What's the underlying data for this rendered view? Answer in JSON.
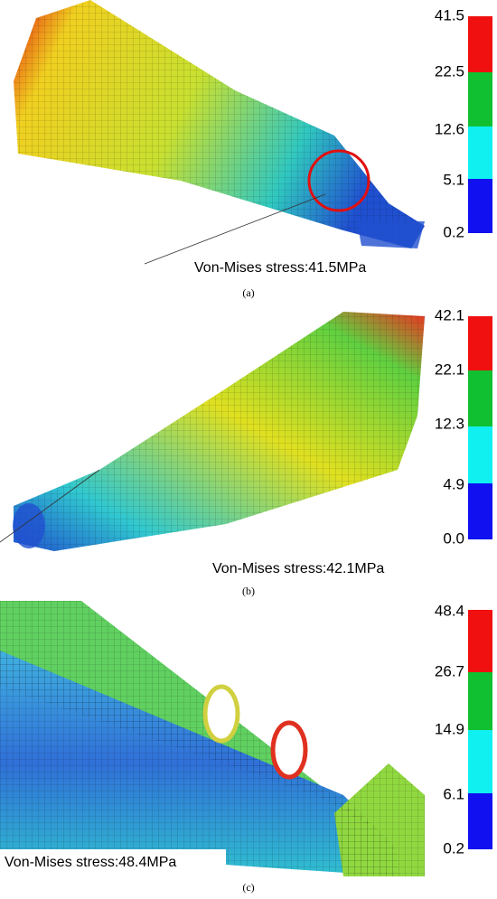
{
  "panels": [
    {
      "colorbar_labels": [
        "41.5",
        "22.5",
        "12.6",
        "5.1",
        "0.2"
      ],
      "annotation": "Von-Mises stress:41.5MPa",
      "caption": "(a)"
    },
    {
      "colorbar_labels": [
        "42.1",
        "22.1",
        "12.3",
        "4.9",
        "0.0"
      ],
      "annotation": "Von-Mises stress:42.1MPa",
      "caption": "(b)"
    },
    {
      "colorbar_labels": [
        "48.4",
        "26.7",
        "14.9",
        "6.1",
        "0.2"
      ],
      "annotation": "Von-Mises stress:48.4MPa",
      "caption": "(c)"
    }
  ]
}
